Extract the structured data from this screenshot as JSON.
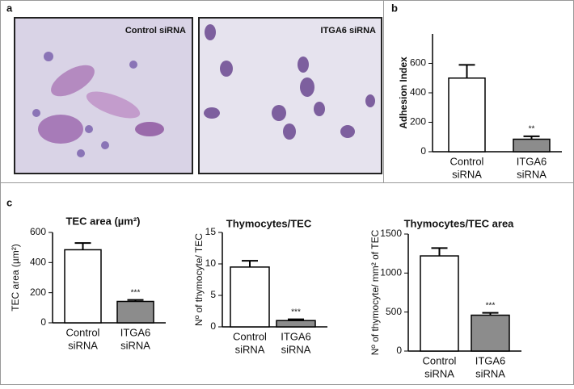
{
  "panel_labels": [
    "a",
    "b",
    "c"
  ],
  "images": [
    {
      "label": "Control siRNA"
    },
    {
      "label": "ITGA6 siRNA"
    }
  ],
  "chart_data": [
    {
      "type": "bar",
      "y_label": "Adhesion Index",
      "categories": [
        [
          "Control",
          "siRNA"
        ],
        [
          "ITGA6",
          "siRNA"
        ]
      ],
      "values": [
        500,
        85
      ],
      "errors": [
        90,
        20
      ],
      "colors": [
        "#ffffff",
        "#8c8c8c"
      ],
      "ylim": [
        0,
        800
      ],
      "yticks": [
        0,
        200,
        400,
        600
      ],
      "annotation": "**"
    },
    {
      "type": "bar",
      "title": "TEC area (µm²)",
      "y_label": "TEC area (µm²)",
      "categories": [
        [
          "Control",
          "siRNA"
        ],
        [
          "ITGA6",
          "siRNA"
        ]
      ],
      "values": [
        485,
        142
      ],
      "errors": [
        45,
        10
      ],
      "colors": [
        "#ffffff",
        "#8c8c8c"
      ],
      "ylim": [
        0,
        600
      ],
      "yticks": [
        0,
        200,
        400,
        600
      ],
      "annotation": "***"
    },
    {
      "type": "bar",
      "title": "Thymocytes/TEC",
      "y_label": "Nº of thymocyte/ TEC",
      "categories": [
        [
          "Control",
          "siRNA"
        ],
        [
          "ITGA6",
          "siRNA"
        ]
      ],
      "values": [
        9.5,
        1.0
      ],
      "errors": [
        1.0,
        0.2
      ],
      "colors": [
        "#ffffff",
        "#8c8c8c"
      ],
      "ylim": [
        0,
        15
      ],
      "yticks": [
        0,
        5,
        10,
        15
      ],
      "annotation": "***"
    },
    {
      "type": "bar",
      "title": "Thymocytes/TEC area",
      "y_label": "Nº of thymocyte/ mm² of TEC",
      "categories": [
        [
          "Control",
          "siRNA"
        ],
        [
          "ITGA6",
          "siRNA"
        ]
      ],
      "values": [
        1220,
        460
      ],
      "errors": [
        100,
        30
      ],
      "colors": [
        "#ffffff",
        "#8c8c8c"
      ],
      "ylim": [
        0,
        1500
      ],
      "yticks": [
        0,
        500,
        1000,
        1500
      ],
      "annotation": "***"
    }
  ]
}
